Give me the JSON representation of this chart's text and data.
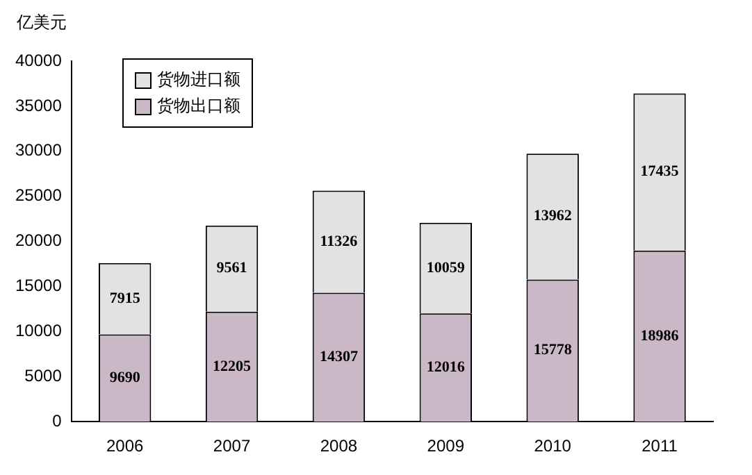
{
  "chart_data": {
    "type": "bar",
    "ylabel": "亿美元",
    "categories": [
      "2006",
      "2007",
      "2008",
      "2009",
      "2010",
      "2011"
    ],
    "stacked": true,
    "series": [
      {
        "name": "货物出口额",
        "color": "#cbb8c6",
        "values": [
          9690,
          12205,
          14307,
          12016,
          15778,
          18986
        ]
      },
      {
        "name": "货物进口额",
        "color": "#e2e2e2",
        "values": [
          7915,
          9561,
          11326,
          10059,
          13962,
          17435
        ]
      }
    ],
    "ylim": [
      0,
      40000
    ],
    "yticks": [
      0,
      5000,
      10000,
      15000,
      20000,
      25000,
      30000,
      35000,
      40000
    ],
    "grid": false,
    "legend": "top left",
    "data_labels": true
  }
}
